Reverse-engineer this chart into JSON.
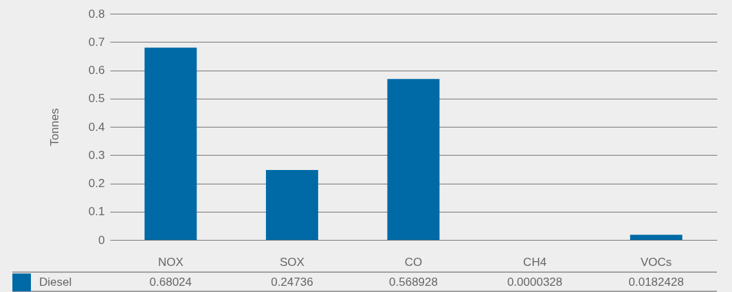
{
  "chart_data": {
    "type": "bar",
    "ylabel": "Tonnes",
    "categories": [
      "NOX",
      "SOX",
      "CO",
      "CH4",
      "VOCs"
    ],
    "series": [
      {
        "name": "Diesel",
        "color": "#006aa6",
        "values": [
          0.68024,
          0.24736,
          0.568928,
          3.28e-05,
          0.0182428
        ],
        "value_labels": [
          "0.68024",
          "0.24736",
          "0.568928",
          "0.0000328",
          "0.0182428"
        ]
      }
    ],
    "ylim": [
      0,
      0.8
    ],
    "yticks": [
      0,
      0.1,
      0.2,
      0.3,
      0.4,
      0.5,
      0.6,
      0.7,
      0.8
    ],
    "grid": "y",
    "legend": "bottom"
  }
}
